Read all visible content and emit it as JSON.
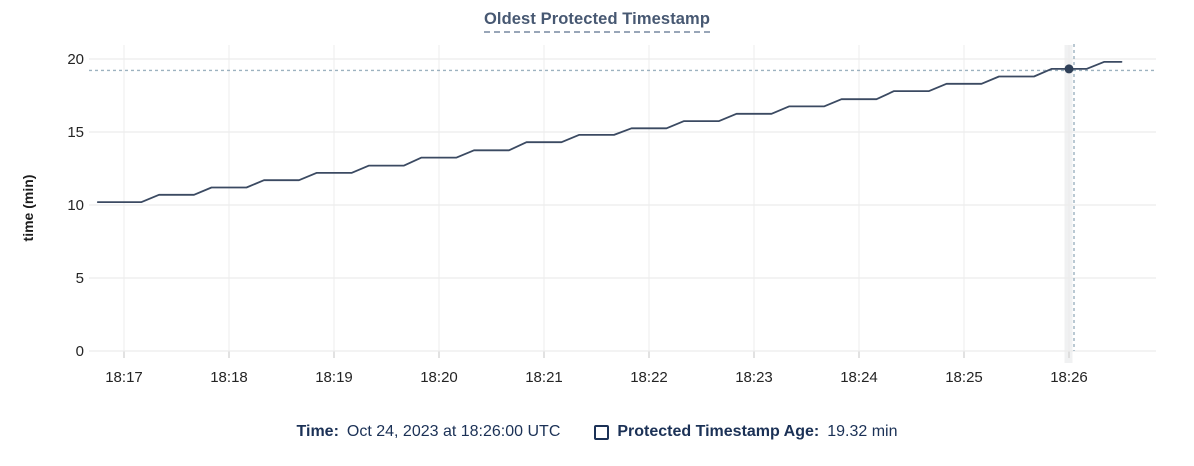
{
  "header": {
    "title": "Oldest Protected Timestamp"
  },
  "chart_data": {
    "type": "line",
    "title": "Oldest Protected Timestamp",
    "xlabel": "",
    "ylabel": "time (min)",
    "ylim": [
      0,
      20
    ],
    "yticks": [
      0,
      5,
      10,
      15,
      20
    ],
    "xticks": [
      "18:17",
      "18:18",
      "18:19",
      "18:20",
      "18:21",
      "18:22",
      "18:23",
      "18:24",
      "18:25",
      "18:26"
    ],
    "grid": true,
    "legend_position": "bottom",
    "series": [
      {
        "name": "Protected Timestamp Age",
        "color": "#3b4a62",
        "points": [
          [
            "18:16:45",
            10.2
          ],
          [
            "18:17:10",
            10.2
          ],
          [
            "18:17:20",
            10.7
          ],
          [
            "18:17:40",
            10.7
          ],
          [
            "18:17:50",
            11.2
          ],
          [
            "18:18:10",
            11.2
          ],
          [
            "18:18:20",
            11.7
          ],
          [
            "18:18:40",
            11.7
          ],
          [
            "18:18:50",
            12.2
          ],
          [
            "18:19:10",
            12.2
          ],
          [
            "18:19:20",
            12.7
          ],
          [
            "18:19:40",
            12.7
          ],
          [
            "18:19:50",
            13.25
          ],
          [
            "18:20:10",
            13.25
          ],
          [
            "18:20:20",
            13.75
          ],
          [
            "18:20:40",
            13.75
          ],
          [
            "18:20:50",
            14.3
          ],
          [
            "18:21:10",
            14.3
          ],
          [
            "18:21:20",
            14.8
          ],
          [
            "18:21:40",
            14.8
          ],
          [
            "18:21:50",
            15.25
          ],
          [
            "18:22:10",
            15.25
          ],
          [
            "18:22:20",
            15.75
          ],
          [
            "18:22:40",
            15.75
          ],
          [
            "18:22:50",
            16.25
          ],
          [
            "18:23:10",
            16.25
          ],
          [
            "18:23:20",
            16.75
          ],
          [
            "18:23:40",
            16.75
          ],
          [
            "18:23:50",
            17.25
          ],
          [
            "18:24:10",
            17.25
          ],
          [
            "18:24:20",
            17.8
          ],
          [
            "18:24:40",
            17.8
          ],
          [
            "18:24:50",
            18.3
          ],
          [
            "18:25:10",
            18.3
          ],
          [
            "18:25:20",
            18.8
          ],
          [
            "18:25:40",
            18.8
          ],
          [
            "18:25:50",
            19.32
          ],
          [
            "18:26:10",
            19.32
          ],
          [
            "18:26:20",
            19.8
          ],
          [
            "18:26:30",
            19.8
          ]
        ]
      }
    ],
    "hover_point": {
      "time": "18:26:00",
      "value": 19.32
    }
  },
  "tooltip": {
    "time_label": "Time:",
    "time_value": "Oct 24, 2023 at 18:26:00 UTC",
    "series_label": "Protected Timestamp Age:",
    "series_value": "19.32 min"
  },
  "colors": {
    "title_text": "#475872",
    "legend_text": "#1b3156",
    "line": "#3b4a62",
    "dot": "#2f4058",
    "crosshair": "#9db2c0",
    "grid": "#ececec",
    "tick_mark": "#d8d8d8",
    "tick_text": "#242424",
    "hover_band": "#f0f1f2"
  }
}
